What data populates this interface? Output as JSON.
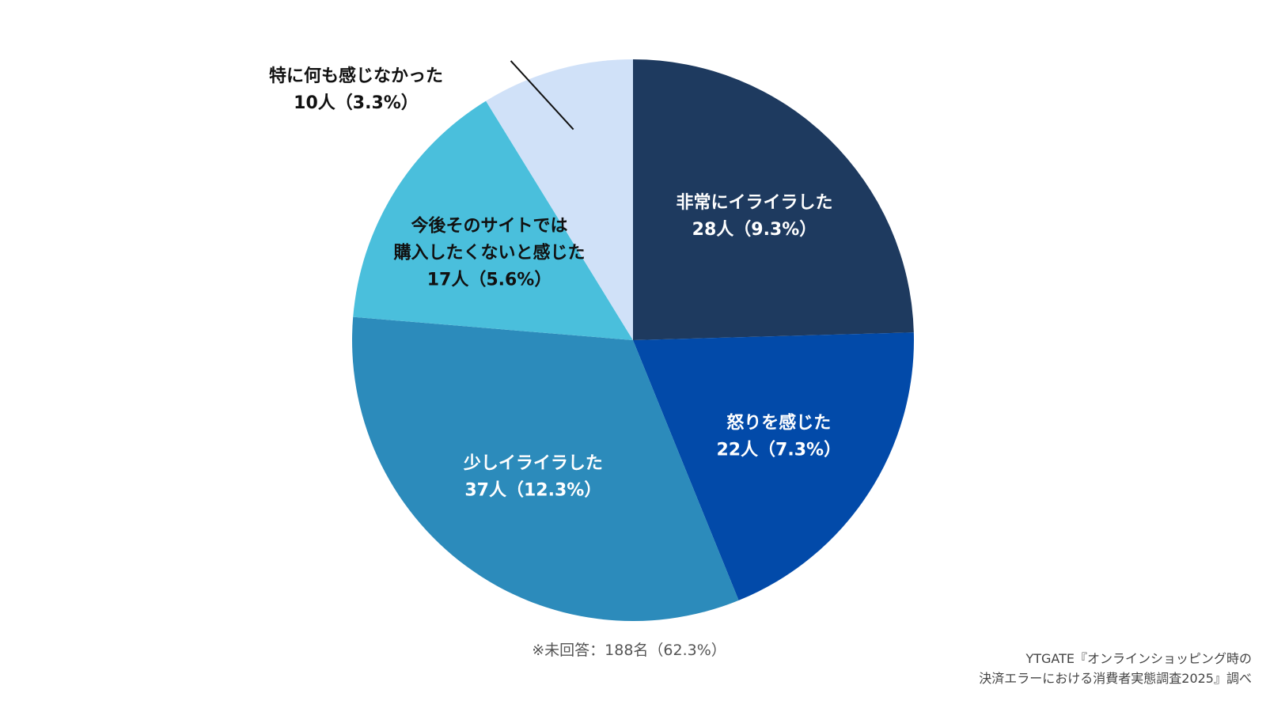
{
  "chart_data": {
    "type": "pie",
    "start": "12 o'clock, clockwise",
    "slices": [
      {
        "label": "非常にイライラした",
        "value_text": "28人（9.3%）",
        "count": 28,
        "percent": 9.3,
        "color": "#1e3a5f",
        "text_color": "#ffffff"
      },
      {
        "label": "怒りを感じた",
        "value_text": "22人（7.3%）",
        "count": 22,
        "percent": 7.3,
        "color": "#024aa9",
        "text_color": "#ffffff"
      },
      {
        "label": "少しイライラした",
        "value_text": "37人（12.3%）",
        "count": 37,
        "percent": 12.3,
        "color": "#2c8bbb",
        "text_color": "#ffffff"
      },
      {
        "label": "今後そのサイトでは購入したくないと感じた",
        "label_lines": [
          "今後そのサイトでは",
          "購入したくないと感じた"
        ],
        "value_text": "17人（5.6%）",
        "count": 17,
        "percent": 5.6,
        "color": "#4abfdc",
        "text_color": "#111111"
      },
      {
        "label": "特に何も感じなかった",
        "value_text": "10人（3.3%）",
        "count": 10,
        "percent": 3.3,
        "color": "#d0e1f8",
        "text_color": "#111111"
      }
    ],
    "footnote": "※未回答：188名（62.3%）",
    "source_lines": [
      "YTGATE『オンラインショッピング時の",
      "決済エラーにおける消費者実態調査2025』調べ"
    ]
  }
}
